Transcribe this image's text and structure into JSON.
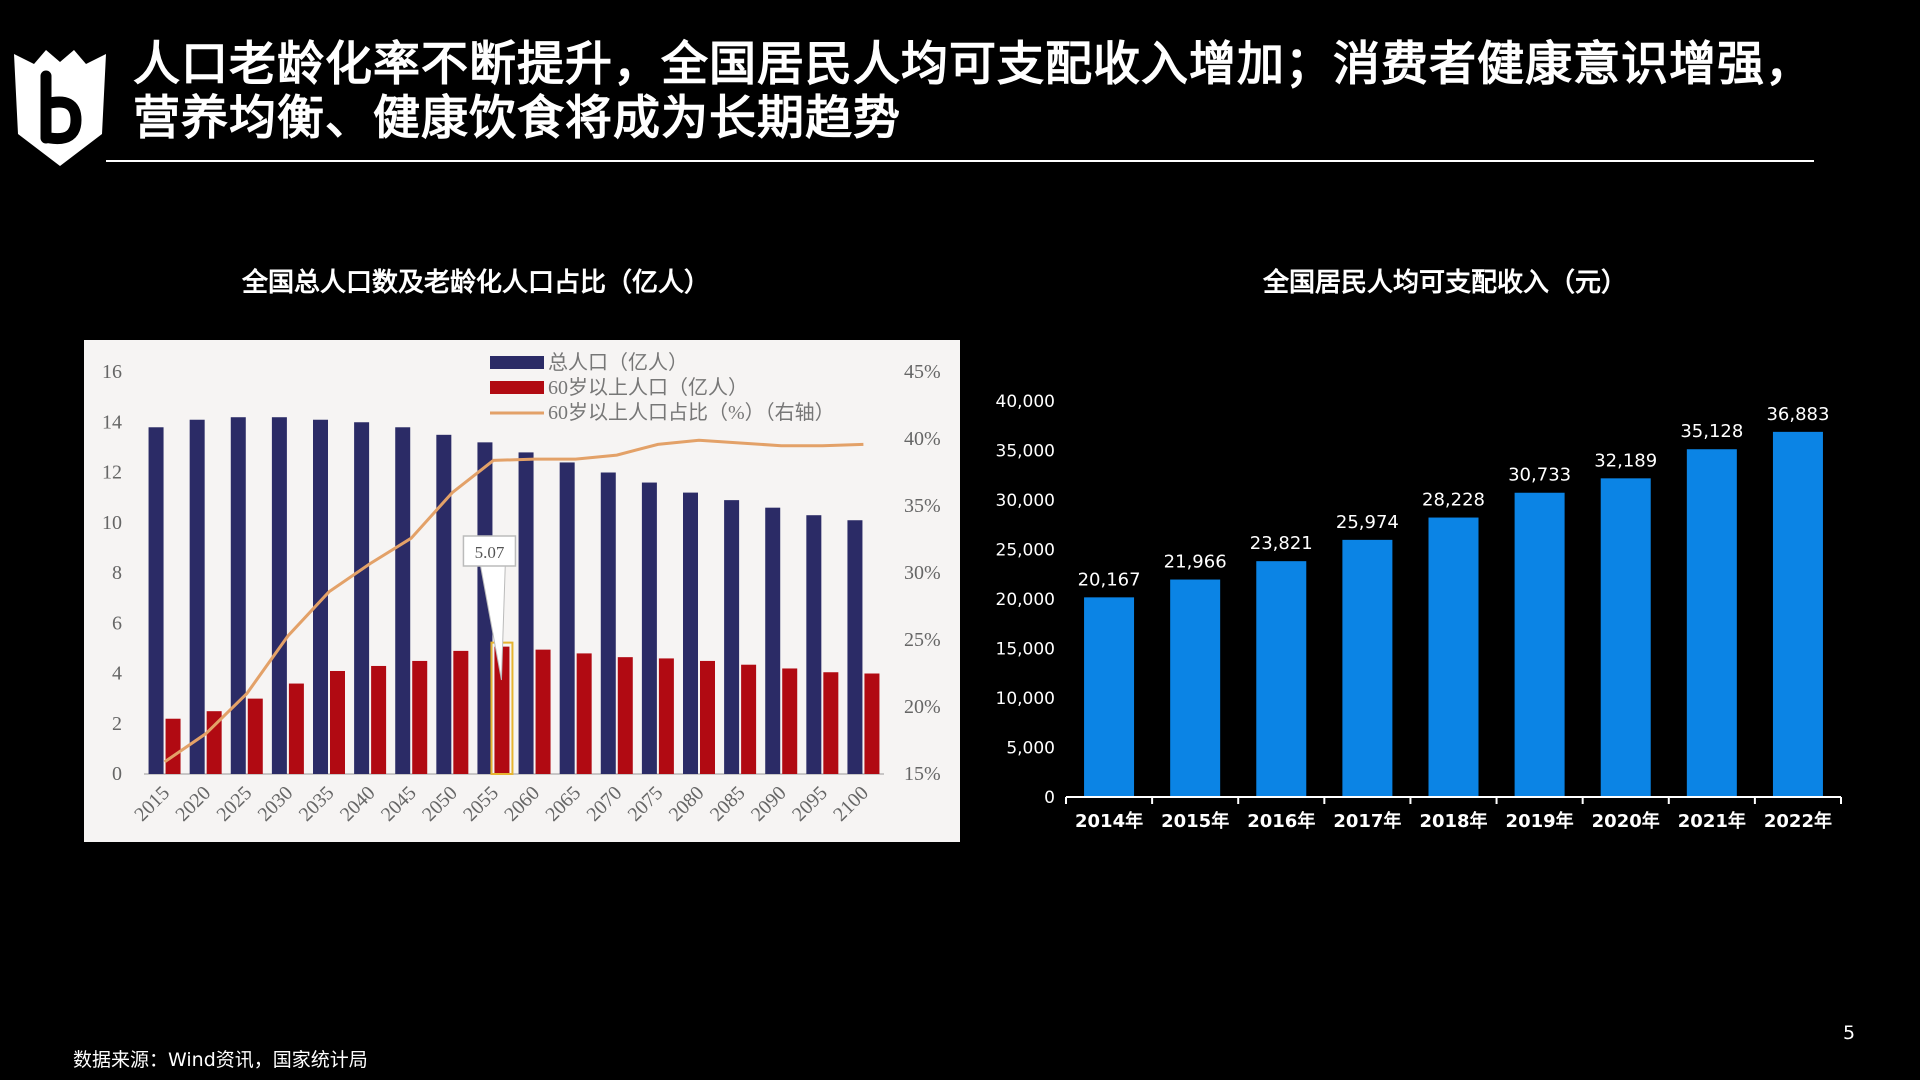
{
  "slide": {
    "title_line1": "人口老龄化率不断提升，全国居民人均可支配收入增加；消费者健康意识增强，",
    "title_line2": "营养均衡、健康饮食将成为长期趋势",
    "page_number": "5",
    "source": "数据来源：Wind资讯，国家统计局",
    "logo_glyph": "b",
    "colors": {
      "background": "#000000",
      "text": "#ffffff",
      "income_bar": "#0b84e5",
      "population_bar": "#2b2b66",
      "elderly_bar": "#b10a12",
      "ratio_line": "#e3a168",
      "panel_bg": "#f6f4f3",
      "callout_border": "#e6b430"
    }
  },
  "chart_data": [
    {
      "type": "bar",
      "title": "全国总人口数及老龄化人口占比（亿人）",
      "categories": [
        "2015",
        "2020",
        "2025",
        "2030",
        "2035",
        "2040",
        "2045",
        "2050",
        "2055",
        "2060",
        "2065",
        "2070",
        "2075",
        "2080",
        "2085",
        "2090",
        "2095",
        "2100"
      ],
      "series": [
        {
          "name": "总人口（亿人）",
          "axis": "left",
          "kind": "bar",
          "values": [
            13.8,
            14.1,
            14.2,
            14.2,
            14.1,
            14.0,
            13.8,
            13.5,
            13.2,
            12.8,
            12.4,
            12.0,
            11.6,
            11.2,
            10.9,
            10.6,
            10.3,
            10.1
          ]
        },
        {
          "name": "60岁以上人口（亿人）",
          "axis": "left",
          "kind": "bar",
          "values": [
            2.2,
            2.5,
            3.0,
            3.6,
            4.1,
            4.3,
            4.5,
            4.9,
            5.07,
            4.95,
            4.8,
            4.65,
            4.6,
            4.5,
            4.35,
            4.2,
            4.05,
            4.0
          ]
        },
        {
          "name": "60岁以上人口占比（%）（右轴）",
          "axis": "right",
          "kind": "line",
          "values": [
            15.9,
            18.0,
            21.0,
            25.3,
            28.6,
            30.7,
            32.6,
            36.0,
            38.4,
            38.5,
            38.5,
            38.8,
            39.6,
            39.9,
            39.7,
            39.5,
            39.5,
            39.6
          ]
        }
      ],
      "annotation": {
        "label": "5.07",
        "category": "2055",
        "series": "60岁以上人口（亿人）"
      },
      "y_left": {
        "min": 0,
        "max": 16,
        "ticks": [
          "0",
          "2",
          "4",
          "6",
          "8",
          "10",
          "12",
          "14",
          "16"
        ]
      },
      "y_right": {
        "min": 15,
        "max": 45,
        "ticks": [
          "15%",
          "20%",
          "25%",
          "30%",
          "35%",
          "40%",
          "45%"
        ]
      },
      "legend_position": "top-center"
    },
    {
      "type": "bar",
      "title": "全国居民人均可支配收入（元）",
      "categories": [
        "2014年",
        "2015年",
        "2016年",
        "2017年",
        "2018年",
        "2019年",
        "2020年",
        "2021年",
        "2022年"
      ],
      "values": [
        20167,
        21966,
        23821,
        25974,
        28228,
        30733,
        32189,
        35128,
        36883
      ],
      "value_labels": [
        "20,167",
        "21,966",
        "23,821",
        "25,974",
        "28,228",
        "30,733",
        "32,189",
        "35,128",
        "36,883"
      ],
      "y_axis": {
        "min": 0,
        "max": 40000,
        "ticks": [
          "0",
          "5,000",
          "10,000",
          "15,000",
          "20,000",
          "25,000",
          "30,000",
          "35,000",
          "40,000"
        ]
      },
      "legend": "none"
    }
  ]
}
